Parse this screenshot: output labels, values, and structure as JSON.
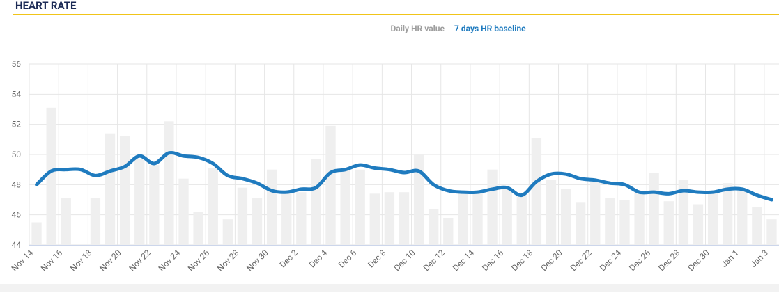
{
  "chart_data": {
    "type": "combo",
    "title": "HEART RATE",
    "categories": [
      "Nov 14",
      null,
      "Nov 16",
      null,
      "Nov 18",
      null,
      "Nov 20",
      null,
      "Nov 22",
      null,
      "Nov 24",
      null,
      "Nov 26",
      null,
      "Nov 28",
      null,
      "Nov 30",
      null,
      "Dec 2",
      null,
      "Dec 4",
      null,
      "Dec 6",
      null,
      "Dec 8",
      null,
      "Dec 10",
      null,
      "Dec 12",
      null,
      "Dec 14",
      null,
      "Dec 16",
      null,
      "Dec 18",
      null,
      "Dec 20",
      null,
      "Dec 22",
      null,
      "Dec 24",
      null,
      "Dec 26",
      null,
      "Dec 28",
      null,
      "Dec 30",
      null,
      "Jan 1",
      null,
      "Jan 3"
    ],
    "series": [
      {
        "name": "Daily HR value",
        "type": "bar",
        "color": "#efefef",
        "values": [
          45.5,
          53.1,
          47.1,
          null,
          47.1,
          51.4,
          51.2,
          49.7,
          49.3,
          52.2,
          48.4,
          46.2,
          49.1,
          45.7,
          47.8,
          47.1,
          49.0,
          47.6,
          47.5,
          49.7,
          51.9,
          49.0,
          49.0,
          47.4,
          47.5,
          47.5,
          50.0,
          46.4,
          45.8,
          47.5,
          47.5,
          49.0,
          47.8,
          47.3,
          51.1,
          48.3,
          47.7,
          46.8,
          48.2,
          47.1,
          47.0,
          47.5,
          48.8,
          46.9,
          48.3,
          46.7,
          47.5,
          48.1,
          47.7,
          46.5,
          45.7
        ]
      },
      {
        "name": "7 days HR baseline",
        "type": "line",
        "color": "#1f7bbf",
        "values": [
          48.0,
          48.9,
          49.0,
          49.0,
          48.6,
          48.9,
          49.2,
          49.9,
          49.4,
          50.1,
          49.9,
          49.8,
          49.4,
          48.6,
          48.4,
          48.1,
          47.6,
          47.5,
          47.7,
          47.8,
          48.8,
          49.0,
          49.3,
          49.1,
          49.0,
          48.8,
          48.9,
          48.0,
          47.6,
          47.5,
          47.5,
          47.7,
          47.8,
          47.3,
          48.2,
          48.7,
          48.7,
          48.4,
          48.3,
          48.1,
          48.0,
          47.5,
          47.5,
          47.4,
          47.6,
          47.5,
          47.5,
          47.7,
          47.7,
          47.3,
          47.0
        ]
      }
    ],
    "ylim": [
      44,
      56
    ],
    "yticks": [
      44,
      46,
      48,
      50,
      52,
      54,
      56
    ],
    "grid": true
  }
}
